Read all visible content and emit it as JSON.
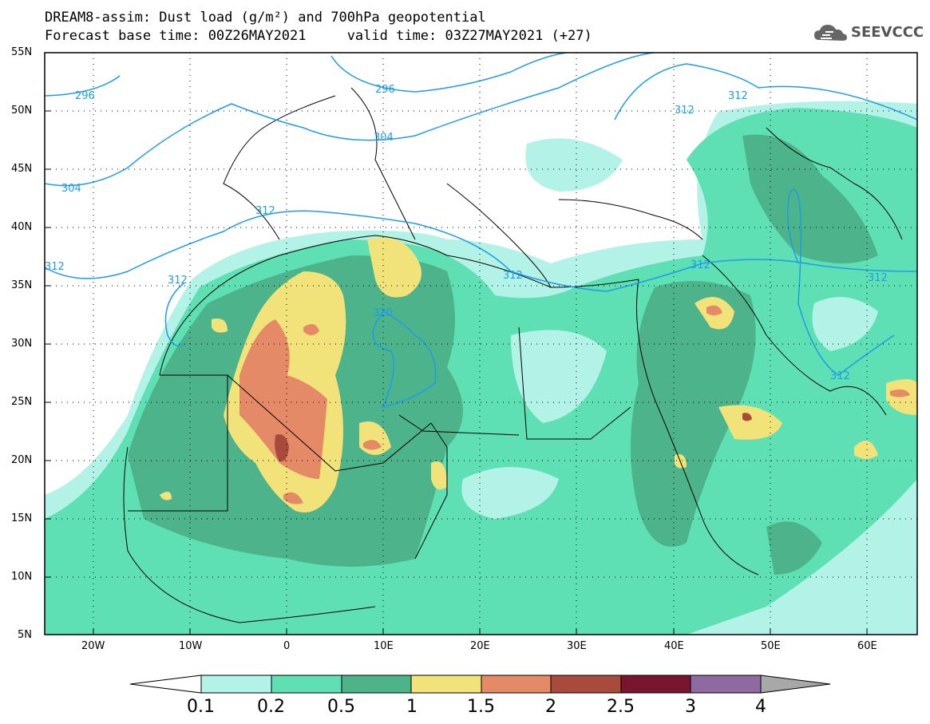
{
  "header": {
    "title_line1": "DREAM8-assim: Dust load (g/m²) and 700hPa geopotential",
    "title_line2": "Forecast base time: 00Z26MAY2021     valid time: 03Z27MAY2021 (+27)"
  },
  "logo": {
    "text": "SEEVCCC",
    "icon": "cloud-icon"
  },
  "axes": {
    "lat_labels": [
      "55N",
      "50N",
      "45N",
      "40N",
      "35N",
      "30N",
      "25N",
      "20N",
      "15N",
      "10N",
      "5N"
    ],
    "lon_labels": [
      "20W",
      "10W",
      "0",
      "10E",
      "20E",
      "30E",
      "40E",
      "50E",
      "60E"
    ]
  },
  "colorbar": {
    "labels": [
      "0.1",
      "0.2",
      "0.5",
      "1",
      "1.5",
      "2",
      "2.5",
      "3",
      "4"
    ],
    "colors": [
      "#b3f2e6",
      "#5fe0b4",
      "#4cb38a",
      "#f2e27a",
      "#e58a66",
      "#a94a3c",
      "#7a1530",
      "#8e6aa0"
    ],
    "extend_low_color": "#ffffff",
    "extend_high_color": "#a8a8a8"
  },
  "contours": {
    "color": "#1f9ce8",
    "labels": [
      "296",
      "296",
      "304",
      "304",
      "312",
      "312",
      "312",
      "312",
      "312",
      "312",
      "312",
      "312",
      "312",
      "320"
    ]
  }
}
